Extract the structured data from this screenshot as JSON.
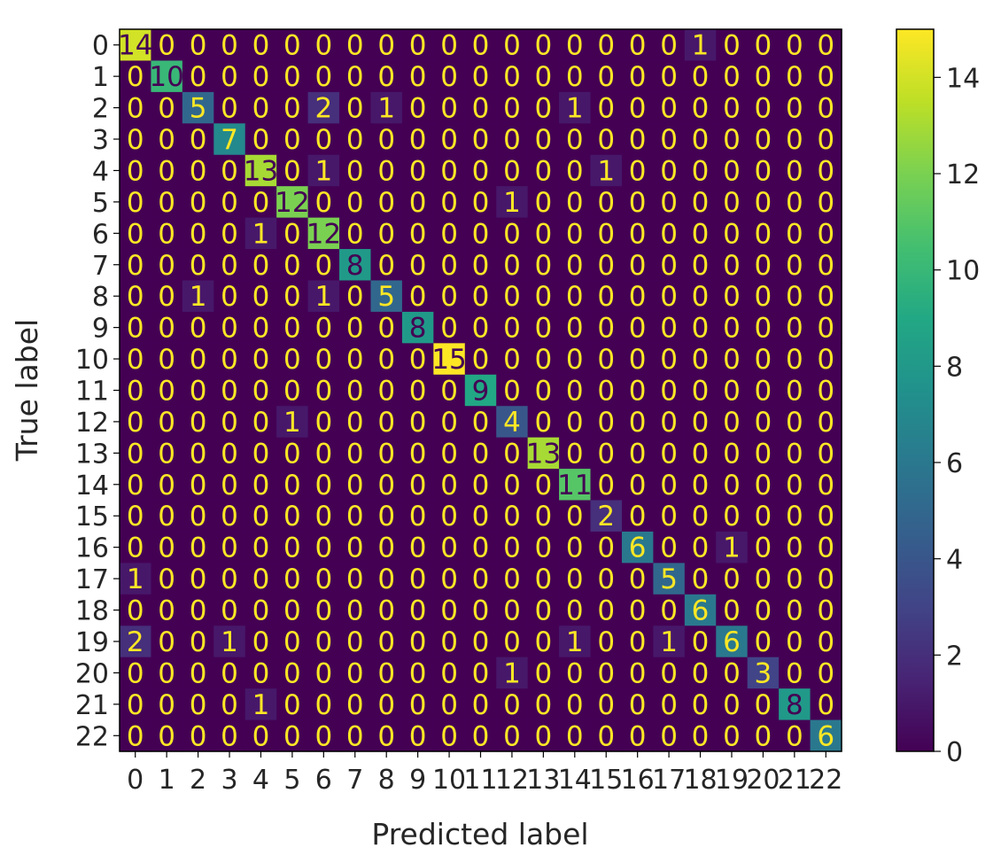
{
  "chart_data": {
    "type": "heatmap",
    "title": "",
    "xlabel": "Predicted label",
    "ylabel": "True label",
    "x_ticks": [
      "0",
      "1",
      "2",
      "3",
      "4",
      "5",
      "6",
      "7",
      "8",
      "9",
      "10",
      "11",
      "12",
      "13",
      "14",
      "15",
      "16",
      "17",
      "18",
      "19",
      "20",
      "21",
      "22"
    ],
    "y_ticks": [
      "0",
      "1",
      "2",
      "3",
      "4",
      "5",
      "6",
      "7",
      "8",
      "9",
      "10",
      "11",
      "12",
      "13",
      "14",
      "15",
      "16",
      "17",
      "18",
      "19",
      "20",
      "21",
      "22"
    ],
    "colormap": "viridis",
    "colorbar": {
      "range": [
        0,
        15
      ],
      "ticks": [
        "0",
        "2",
        "4",
        "6",
        "8",
        "10",
        "12",
        "14"
      ]
    },
    "text_color_low": "#fde725",
    "text_color_high": "#440154",
    "matrix": [
      [
        14,
        0,
        0,
        0,
        0,
        0,
        0,
        0,
        0,
        0,
        0,
        0,
        0,
        0,
        0,
        0,
        0,
        0,
        1,
        0,
        0,
        0,
        0
      ],
      [
        0,
        10,
        0,
        0,
        0,
        0,
        0,
        0,
        0,
        0,
        0,
        0,
        0,
        0,
        0,
        0,
        0,
        0,
        0,
        0,
        0,
        0,
        0
      ],
      [
        0,
        0,
        5,
        0,
        0,
        0,
        2,
        0,
        1,
        0,
        0,
        0,
        0,
        0,
        1,
        0,
        0,
        0,
        0,
        0,
        0,
        0,
        0
      ],
      [
        0,
        0,
        0,
        7,
        0,
        0,
        0,
        0,
        0,
        0,
        0,
        0,
        0,
        0,
        0,
        0,
        0,
        0,
        0,
        0,
        0,
        0,
        0
      ],
      [
        0,
        0,
        0,
        0,
        13,
        0,
        1,
        0,
        0,
        0,
        0,
        0,
        0,
        0,
        0,
        1,
        0,
        0,
        0,
        0,
        0,
        0,
        0
      ],
      [
        0,
        0,
        0,
        0,
        0,
        12,
        0,
        0,
        0,
        0,
        0,
        0,
        1,
        0,
        0,
        0,
        0,
        0,
        0,
        0,
        0,
        0,
        0
      ],
      [
        0,
        0,
        0,
        0,
        1,
        0,
        12,
        0,
        0,
        0,
        0,
        0,
        0,
        0,
        0,
        0,
        0,
        0,
        0,
        0,
        0,
        0,
        0
      ],
      [
        0,
        0,
        0,
        0,
        0,
        0,
        0,
        8,
        0,
        0,
        0,
        0,
        0,
        0,
        0,
        0,
        0,
        0,
        0,
        0,
        0,
        0,
        0
      ],
      [
        0,
        0,
        1,
        0,
        0,
        0,
        1,
        0,
        5,
        0,
        0,
        0,
        0,
        0,
        0,
        0,
        0,
        0,
        0,
        0,
        0,
        0,
        0
      ],
      [
        0,
        0,
        0,
        0,
        0,
        0,
        0,
        0,
        0,
        8,
        0,
        0,
        0,
        0,
        0,
        0,
        0,
        0,
        0,
        0,
        0,
        0,
        0
      ],
      [
        0,
        0,
        0,
        0,
        0,
        0,
        0,
        0,
        0,
        0,
        15,
        0,
        0,
        0,
        0,
        0,
        0,
        0,
        0,
        0,
        0,
        0,
        0
      ],
      [
        0,
        0,
        0,
        0,
        0,
        0,
        0,
        0,
        0,
        0,
        0,
        9,
        0,
        0,
        0,
        0,
        0,
        0,
        0,
        0,
        0,
        0,
        0
      ],
      [
        0,
        0,
        0,
        0,
        0,
        1,
        0,
        0,
        0,
        0,
        0,
        0,
        4,
        0,
        0,
        0,
        0,
        0,
        0,
        0,
        0,
        0,
        0
      ],
      [
        0,
        0,
        0,
        0,
        0,
        0,
        0,
        0,
        0,
        0,
        0,
        0,
        0,
        13,
        0,
        0,
        0,
        0,
        0,
        0,
        0,
        0,
        0
      ],
      [
        0,
        0,
        0,
        0,
        0,
        0,
        0,
        0,
        0,
        0,
        0,
        0,
        0,
        0,
        11,
        0,
        0,
        0,
        0,
        0,
        0,
        0,
        0
      ],
      [
        0,
        0,
        0,
        0,
        0,
        0,
        0,
        0,
        0,
        0,
        0,
        0,
        0,
        0,
        0,
        2,
        0,
        0,
        0,
        0,
        0,
        0,
        0
      ],
      [
        0,
        0,
        0,
        0,
        0,
        0,
        0,
        0,
        0,
        0,
        0,
        0,
        0,
        0,
        0,
        0,
        6,
        0,
        0,
        1,
        0,
        0,
        0
      ],
      [
        1,
        0,
        0,
        0,
        0,
        0,
        0,
        0,
        0,
        0,
        0,
        0,
        0,
        0,
        0,
        0,
        0,
        5,
        0,
        0,
        0,
        0,
        0
      ],
      [
        0,
        0,
        0,
        0,
        0,
        0,
        0,
        0,
        0,
        0,
        0,
        0,
        0,
        0,
        0,
        0,
        0,
        0,
        6,
        0,
        0,
        0,
        0
      ],
      [
        2,
        0,
        0,
        1,
        0,
        0,
        0,
        0,
        0,
        0,
        0,
        0,
        0,
        0,
        1,
        0,
        0,
        1,
        0,
        6,
        0,
        0,
        0
      ],
      [
        0,
        0,
        0,
        0,
        0,
        0,
        0,
        0,
        0,
        0,
        0,
        0,
        1,
        0,
        0,
        0,
        0,
        0,
        0,
        0,
        3,
        0,
        0
      ],
      [
        0,
        0,
        0,
        0,
        1,
        0,
        0,
        0,
        0,
        0,
        0,
        0,
        0,
        0,
        0,
        0,
        0,
        0,
        0,
        0,
        0,
        8,
        0
      ],
      [
        0,
        0,
        0,
        0,
        0,
        0,
        0,
        0,
        0,
        0,
        0,
        0,
        0,
        0,
        0,
        0,
        0,
        0,
        0,
        0,
        0,
        0,
        6
      ]
    ]
  }
}
